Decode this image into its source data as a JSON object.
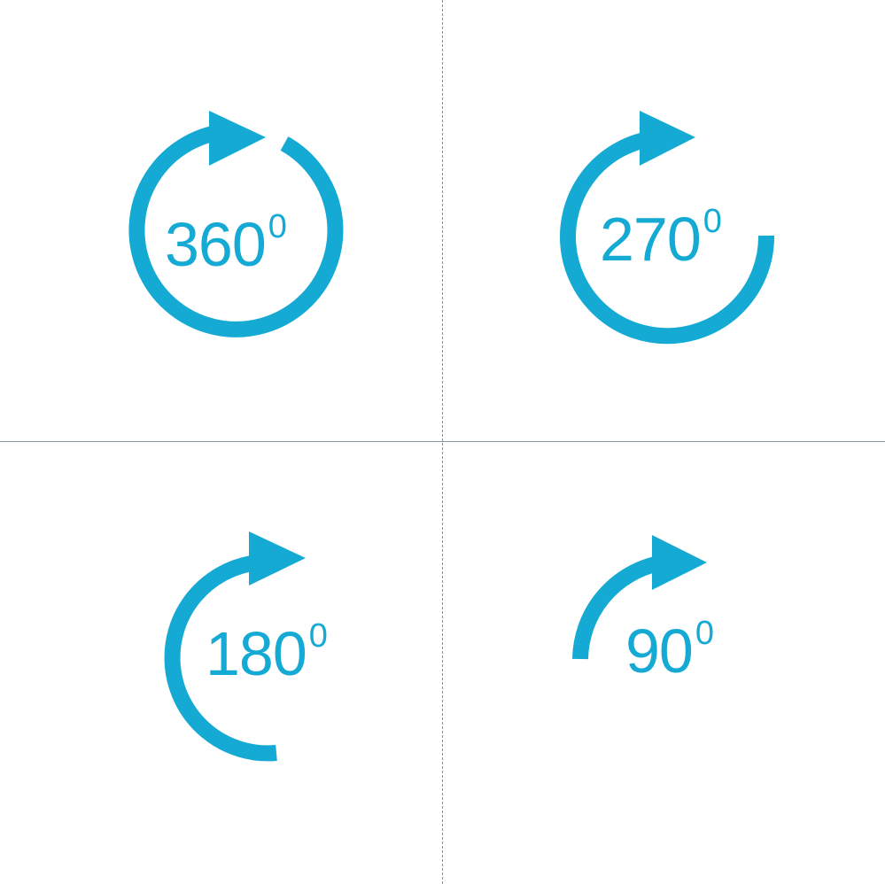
{
  "accent_color": "#14aad3",
  "icons": [
    {
      "id": "360",
      "number": "360",
      "superscript": "0",
      "rotation_degrees": 360,
      "icon": "rotate-360-arrow-icon"
    },
    {
      "id": "270",
      "number": "270",
      "superscript": "0",
      "rotation_degrees": 270,
      "icon": "rotate-270-arrow-icon"
    },
    {
      "id": "180",
      "number": "180",
      "superscript": "0",
      "rotation_degrees": 180,
      "icon": "rotate-180-arrow-icon"
    },
    {
      "id": "90",
      "number": "90",
      "superscript": "0",
      "rotation_degrees": 90,
      "icon": "rotate-90-arrow-icon"
    }
  ]
}
